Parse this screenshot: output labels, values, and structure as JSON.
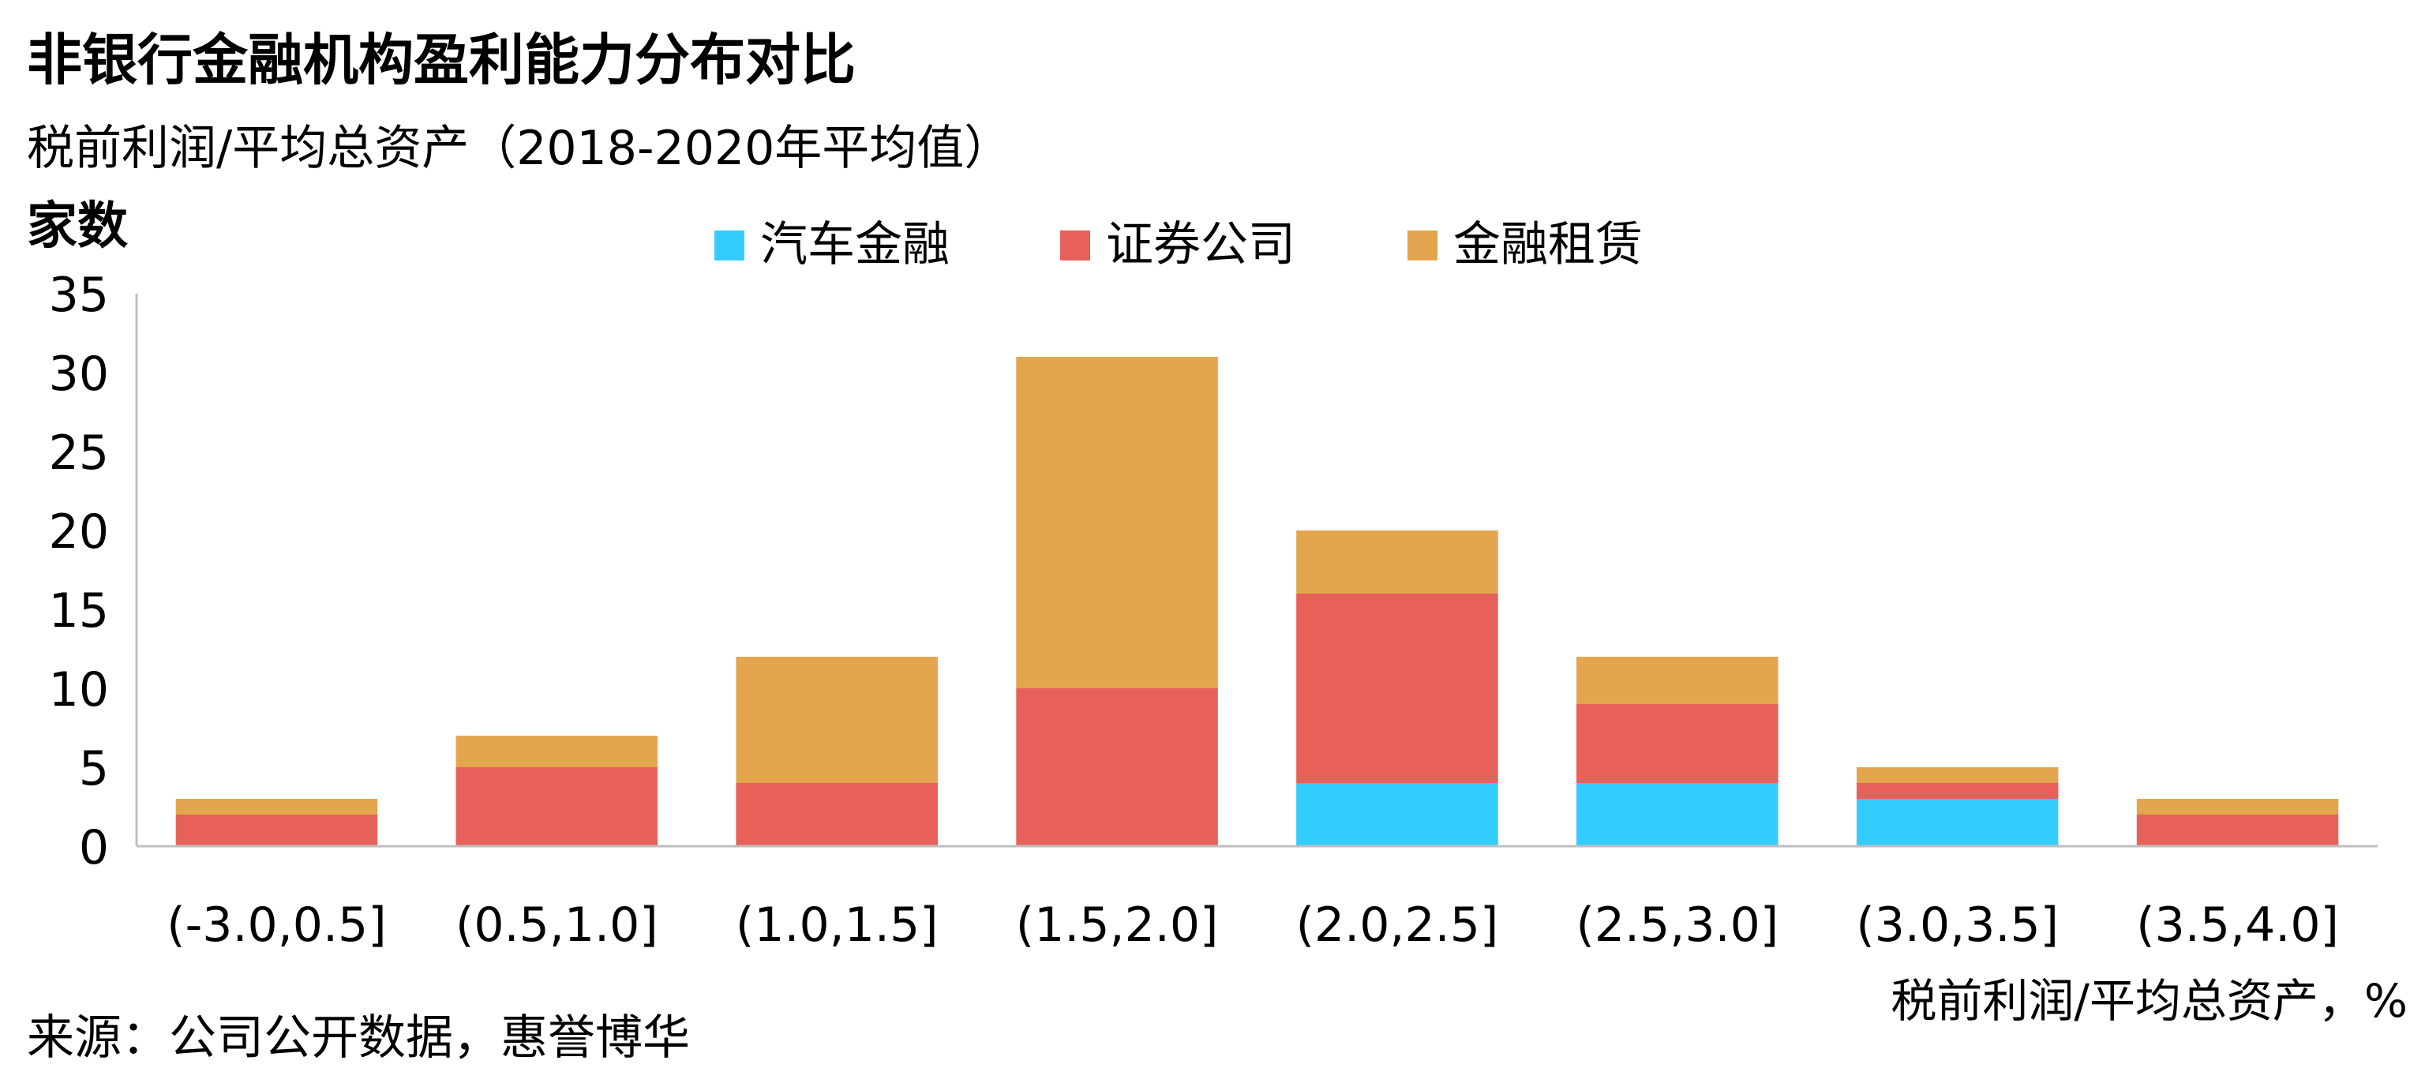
{
  "chart_data": {
    "type": "bar",
    "stacked": true,
    "title": "非银行金融机构盈利能力分布对比",
    "subtitle": "税前利润/平均总资产（2018-2020年平均值）",
    "ylabel": "家数",
    "xlabel": "税前利润/平均总资产，%",
    "source": "来源：公司公开数据，惠誉博华",
    "categories": [
      "(-3.0,0.5]",
      "(0.5,1.0]",
      "(1.0,1.5]",
      "(1.5,2.0]",
      "(2.0,2.5]",
      "(2.5,3.0]",
      "(3.0,3.5]",
      "(3.5,4.0]"
    ],
    "series": [
      {
        "name": "汽车金融",
        "color": "#33CCFF",
        "values": [
          0,
          0,
          0,
          0,
          4,
          4,
          3,
          0
        ]
      },
      {
        "name": "证券公司",
        "color": "#E8605A",
        "values": [
          2,
          5,
          4,
          10,
          12,
          5,
          1,
          2
        ]
      },
      {
        "name": "金融租赁",
        "color": "#E3A64E",
        "values": [
          1,
          2,
          8,
          21,
          4,
          3,
          1,
          1
        ]
      }
    ],
    "ylim": [
      0,
      35
    ],
    "yticks": [
      "0",
      "5",
      "10",
      "15",
      "20",
      "25",
      "30",
      "35"
    ],
    "grid": false,
    "legend_position": "top-center"
  }
}
